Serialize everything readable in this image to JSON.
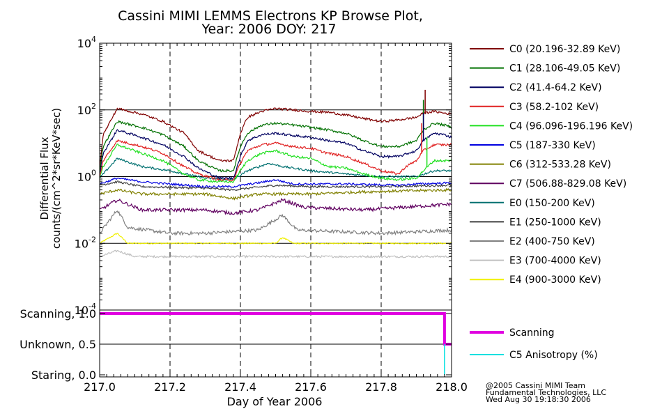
{
  "chart_data": [
    {
      "type": "line",
      "title": "Cassini MIMI LEMMS Electrons KP Browse Plot,",
      "subtitle": "Year: 2006 DOY: 217",
      "ylabel": "Differential Flux",
      "ylabel2": "counts/(cm^2*sr*KeV*sec)",
      "ylog": true,
      "ylim": [
        0.0001,
        10000
      ],
      "xlim": [
        217.0,
        218.0
      ],
      "grid": "dashed vertical at x ticks; solid horizontal at y = 100, 1, 0.01",
      "yticks": [
        {
          "value": 0.0001,
          "base": "10",
          "exp": "-4"
        },
        {
          "value": 0.01,
          "base": "10",
          "exp": "-2"
        },
        {
          "value": 1,
          "base": "10",
          "exp": "0"
        },
        {
          "value": 100,
          "base": "10",
          "exp": "2"
        },
        {
          "value": 10000,
          "base": "10",
          "exp": "4"
        }
      ],
      "legend_position": "right",
      "series": [
        {
          "name": "C0 (20.196-32.89 KeV)",
          "color": "#800000",
          "noise": 0.035,
          "points": [
            [
              217.0,
              2
            ],
            [
              217.01,
              18
            ],
            [
              217.05,
              110
            ],
            [
              217.12,
              75
            ],
            [
              217.18,
              45
            ],
            [
              217.24,
              20
            ],
            [
              217.28,
              6
            ],
            [
              217.34,
              3
            ],
            [
              217.38,
              3
            ],
            [
              217.4,
              20
            ],
            [
              217.42,
              60
            ],
            [
              217.46,
              90
            ],
            [
              217.5,
              110
            ],
            [
              217.55,
              100
            ],
            [
              217.6,
              90
            ],
            [
              217.65,
              85
            ],
            [
              217.7,
              70
            ],
            [
              217.75,
              55
            ],
            [
              217.8,
              45
            ],
            [
              217.85,
              50
            ],
            [
              217.9,
              60
            ],
            [
              217.92,
              80
            ],
            [
              217.95,
              90
            ],
            [
              217.98,
              80
            ],
            [
              218.0,
              75
            ]
          ]
        },
        {
          "name": "C1 (28.106-49.05 KeV)",
          "color": "#007000",
          "noise": 0.035,
          "points": [
            [
              217.0,
              1.5
            ],
            [
              217.01,
              8
            ],
            [
              217.05,
              45
            ],
            [
              217.12,
              30
            ],
            [
              217.18,
              18
            ],
            [
              217.24,
              8
            ],
            [
              217.28,
              3
            ],
            [
              217.34,
              1.5
            ],
            [
              217.38,
              1.5
            ],
            [
              217.4,
              8
            ],
            [
              217.42,
              20
            ],
            [
              217.46,
              35
            ],
            [
              217.5,
              40
            ],
            [
              217.55,
              35
            ],
            [
              217.6,
              30
            ],
            [
              217.65,
              25
            ],
            [
              217.7,
              20
            ],
            [
              217.75,
              12
            ],
            [
              217.8,
              8
            ],
            [
              217.85,
              8
            ],
            [
              217.9,
              12
            ],
            [
              217.92,
              25
            ],
            [
              217.95,
              40
            ],
            [
              217.98,
              35
            ],
            [
              218.0,
              30
            ]
          ]
        },
        {
          "name": "C2 (41.4-64.2 KeV)",
          "color": "#000060",
          "noise": 0.035,
          "points": [
            [
              217.0,
              1.2
            ],
            [
              217.01,
              5
            ],
            [
              217.05,
              25
            ],
            [
              217.12,
              15
            ],
            [
              217.18,
              9
            ],
            [
              217.24,
              4
            ],
            [
              217.28,
              1.8
            ],
            [
              217.34,
              0.9
            ],
            [
              217.38,
              0.9
            ],
            [
              217.4,
              4
            ],
            [
              217.42,
              12
            ],
            [
              217.46,
              18
            ],
            [
              217.5,
              20
            ],
            [
              217.55,
              17
            ],
            [
              217.6,
              15
            ],
            [
              217.65,
              12
            ],
            [
              217.7,
              10
            ],
            [
              217.75,
              6
            ],
            [
              217.8,
              4
            ],
            [
              217.85,
              4
            ],
            [
              217.9,
              6
            ],
            [
              217.92,
              12
            ],
            [
              217.95,
              20
            ],
            [
              217.98,
              18
            ],
            [
              218.0,
              15
            ]
          ]
        },
        {
          "name": "C3 (58.2-102 KeV)",
          "color": "#e02020",
          "noise": 0.035,
          "points": [
            [
              217.0,
              1.0
            ],
            [
              217.01,
              3
            ],
            [
              217.05,
              12
            ],
            [
              217.12,
              8
            ],
            [
              217.18,
              5
            ],
            [
              217.24,
              2
            ],
            [
              217.28,
              1.2
            ],
            [
              217.34,
              0.8
            ],
            [
              217.38,
              0.8
            ],
            [
              217.4,
              2.5
            ],
            [
              217.42,
              6
            ],
            [
              217.46,
              9
            ],
            [
              217.5,
              10
            ],
            [
              217.55,
              8
            ],
            [
              217.6,
              7
            ],
            [
              217.65,
              5
            ],
            [
              217.7,
              4
            ],
            [
              217.75,
              2.5
            ],
            [
              217.8,
              1.5
            ],
            [
              217.85,
              1.2
            ],
            [
              217.87,
              2
            ],
            [
              217.9,
              3
            ],
            [
              217.92,
              6
            ],
            [
              217.95,
              9
            ],
            [
              217.98,
              9
            ],
            [
              218.0,
              9
            ]
          ]
        },
        {
          "name": "C4 (96.096-196.196 KeV)",
          "color": "#20e020",
          "noise": 0.035,
          "points": [
            [
              217.0,
              0.9
            ],
            [
              217.01,
              2
            ],
            [
              217.05,
              9
            ],
            [
              217.12,
              5
            ],
            [
              217.18,
              3
            ],
            [
              217.24,
              1.2
            ],
            [
              217.28,
              0.8
            ],
            [
              217.34,
              0.7
            ],
            [
              217.38,
              0.7
            ],
            [
              217.4,
              1.5
            ],
            [
              217.42,
              3
            ],
            [
              217.46,
              5
            ],
            [
              217.5,
              6
            ],
            [
              217.55,
              4
            ],
            [
              217.6,
              3.5
            ],
            [
              217.65,
              2
            ],
            [
              217.7,
              1.8
            ],
            [
              217.75,
              1.2
            ],
            [
              217.8,
              0.9
            ],
            [
              217.85,
              0.8
            ],
            [
              217.9,
              0.9
            ],
            [
              217.92,
              1.5
            ],
            [
              217.95,
              3
            ],
            [
              217.98,
              3
            ],
            [
              218.0,
              3
            ]
          ]
        },
        {
          "name": "C5 (187-330 KeV)",
          "color": "#0000e0",
          "noise": 0.03,
          "points": [
            [
              217.0,
              0.6
            ],
            [
              217.05,
              0.9
            ],
            [
              217.12,
              0.7
            ],
            [
              217.3,
              0.5
            ],
            [
              217.38,
              0.5
            ],
            [
              217.45,
              0.65
            ],
            [
              217.5,
              0.8
            ],
            [
              217.55,
              0.6
            ],
            [
              217.7,
              0.6
            ],
            [
              217.85,
              0.55
            ],
            [
              217.9,
              0.6
            ],
            [
              218.0,
              0.65
            ]
          ]
        },
        {
          "name": "C6 (312-533.28 KeV)",
          "color": "#808000",
          "noise": 0.04,
          "points": [
            [
              217.0,
              0.3
            ],
            [
              217.05,
              0.4
            ],
            [
              217.12,
              0.3
            ],
            [
              217.3,
              0.3
            ],
            [
              217.38,
              0.22
            ],
            [
              217.45,
              0.3
            ],
            [
              217.5,
              0.3
            ],
            [
              217.6,
              0.3
            ],
            [
              217.75,
              0.35
            ],
            [
              218.0,
              0.4
            ]
          ]
        },
        {
          "name": "C7 (506.88-829.08 KeV)",
          "color": "#600060",
          "noise": 0.05,
          "points": [
            [
              217.0,
              0.1
            ],
            [
              217.05,
              0.2
            ],
            [
              217.12,
              0.1
            ],
            [
              217.3,
              0.1
            ],
            [
              217.38,
              0.08
            ],
            [
              217.45,
              0.1
            ],
            [
              217.52,
              0.2
            ],
            [
              217.58,
              0.12
            ],
            [
              217.75,
              0.1
            ],
            [
              218.0,
              0.15
            ]
          ]
        },
        {
          "name": "E0 (150-200 KeV)",
          "color": "#007070",
          "noise": 0.03,
          "points": [
            [
              217.0,
              0.9
            ],
            [
              217.01,
              1.2
            ],
            [
              217.05,
              3.5
            ],
            [
              217.12,
              2
            ],
            [
              217.2,
              1.5
            ],
            [
              217.3,
              0.9
            ],
            [
              217.38,
              0.8
            ],
            [
              217.42,
              1.5
            ],
            [
              217.48,
              2.5
            ],
            [
              217.52,
              2
            ],
            [
              217.6,
              1.5
            ],
            [
              217.7,
              1.2
            ],
            [
              217.8,
              1.0
            ],
            [
              217.9,
              1.0
            ],
            [
              217.95,
              1.5
            ],
            [
              218.0,
              1.5
            ]
          ]
        },
        {
          "name": "E1 (250-1000 KeV)",
          "color": "#404040",
          "noise": 0.03,
          "points": [
            [
              217.0,
              0.55
            ],
            [
              217.05,
              0.7
            ],
            [
              217.12,
              0.5
            ],
            [
              217.3,
              0.45
            ],
            [
              217.38,
              0.4
            ],
            [
              217.5,
              0.55
            ],
            [
              217.6,
              0.5
            ],
            [
              217.8,
              0.5
            ],
            [
              218.0,
              0.55
            ]
          ]
        },
        {
          "name": "E2 (400-750 KeV)",
          "color": "#808080",
          "noise": 0.05,
          "points": [
            [
              217.0,
              0.02
            ],
            [
              217.05,
              0.1
            ],
            [
              217.08,
              0.03
            ],
            [
              217.2,
              0.02
            ],
            [
              217.3,
              0.02
            ],
            [
              217.45,
              0.025
            ],
            [
              217.52,
              0.07
            ],
            [
              217.56,
              0.025
            ],
            [
              217.8,
              0.02
            ],
            [
              218.0,
              0.025
            ]
          ]
        },
        {
          "name": "E3 (700-4000 KeV)",
          "color": "#c0c0c0",
          "noise": 0.03,
          "points": [
            [
              217.0,
              0.004
            ],
            [
              217.05,
              0.006
            ],
            [
              217.1,
              0.004
            ],
            [
              217.5,
              0.004
            ],
            [
              218.0,
              0.004
            ]
          ]
        },
        {
          "name": "E4 (900-3000 KeV)",
          "color": "#f0f000",
          "noise": 0.02,
          "points": [
            [
              217.0,
              0.01
            ],
            [
              217.05,
              0.02
            ],
            [
              217.08,
              0.01
            ],
            [
              217.5,
              0.01
            ],
            [
              217.52,
              0.015
            ],
            [
              217.55,
              0.01
            ],
            [
              218.0,
              0.01
            ]
          ]
        }
      ]
    },
    {
      "type": "line",
      "xlabel": "Day of Year 2006",
      "xlim": [
        217.0,
        218.0
      ],
      "xticks": [
        "217.0",
        "217.2",
        "217.4",
        "217.6",
        "217.8",
        "218.0"
      ],
      "xtick_values": [
        217.0,
        217.2,
        217.4,
        217.6,
        217.8,
        218.0
      ],
      "ylim": [
        0.0,
        1.0
      ],
      "ytick_labels": [
        {
          "label": "Scanning, 1.0",
          "value": 1.0
        },
        {
          "label": "Unknown, 0.5",
          "value": 0.5
        },
        {
          "label": "Staring, 0.0",
          "value": 0.0
        }
      ],
      "legend_position": "right",
      "series": [
        {
          "name": "Scanning",
          "color": "#e000e0",
          "points": [
            [
              217.0,
              1.0
            ],
            [
              217.98,
              1.0
            ],
            [
              217.98,
              0.5
            ],
            [
              218.0,
              0.5
            ]
          ]
        },
        {
          "name": "C5 Anisotropy (%)",
          "color": "#00e0e0",
          "points": [
            [
              217.98,
              0.5
            ],
            [
              217.98,
              0.0
            ]
          ]
        }
      ]
    }
  ],
  "credits": [
    "@2005 Cassini MIMI Team",
    "Fundamental Technologies, LLC",
    "Wed Aug 30 19:18:30 2006"
  ]
}
